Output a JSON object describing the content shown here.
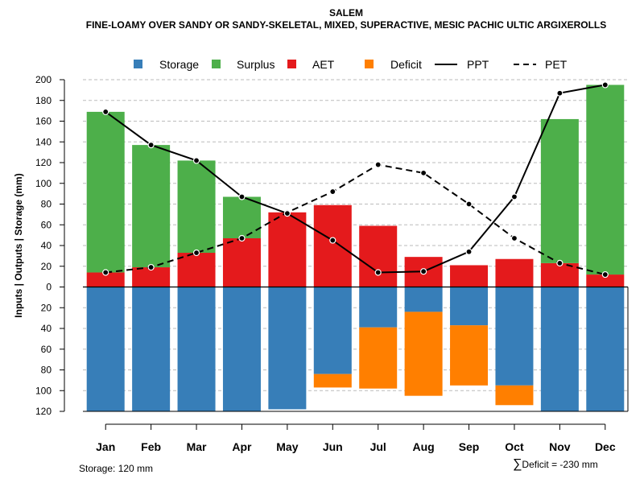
{
  "title": "SALEM",
  "subtitle": "FINE-LOAMY OVER SANDY OR SANDY-SKELETAL, MIXED, SUPERACTIVE, MESIC PACHIC ULTIC ARGIXEROLLS",
  "storage_note": "Storage: 120 mm",
  "deficit_note": "Deficit = -230 mm",
  "deficit_symbol": "∑",
  "colors": {
    "storage": "#377eb8",
    "surplus": "#4daf4a",
    "aet": "#e41a1c",
    "deficit": "#ff7f00",
    "line": "#000000",
    "grid": "#bbbbbb"
  },
  "chart_data": {
    "type": "bar",
    "title": "SALEM",
    "ylabel": "Inputs | Outputs | Storage    (mm)",
    "ylim": [
      -120,
      200
    ],
    "y_ticks": [
      200,
      180,
      160,
      140,
      120,
      100,
      80,
      60,
      40,
      20,
      0,
      -20,
      -40,
      -60,
      -80,
      -100,
      -120
    ],
    "y_tick_labels": [
      "200",
      "180",
      "160",
      "140",
      "120",
      "100",
      "80",
      "60",
      "40",
      "20",
      "0",
      "20",
      "40",
      "60",
      "80",
      "100",
      "120"
    ],
    "legend": [
      "Storage",
      "Surplus",
      "AET",
      "Deficit",
      "PPT",
      "PET"
    ],
    "legend_position": "top",
    "categories": [
      "Jan",
      "Feb",
      "Mar",
      "Apr",
      "May",
      "Jun",
      "Jul",
      "Aug",
      "Sep",
      "Oct",
      "Nov",
      "Dec"
    ],
    "series": [
      {
        "name": "AET",
        "values": [
          14,
          19,
          33,
          47,
          72,
          79,
          59,
          29,
          21,
          27,
          23,
          12
        ]
      },
      {
        "name": "Surplus",
        "values": [
          155,
          118,
          89,
          40,
          0,
          0,
          0,
          0,
          0,
          0,
          139,
          183
        ]
      },
      {
        "name": "Storage",
        "values": [
          120,
          120,
          120,
          120,
          118,
          84,
          39,
          24,
          37,
          95,
          120,
          120
        ]
      },
      {
        "name": "Deficit",
        "values": [
          0,
          0,
          0,
          0,
          0,
          13,
          59,
          81,
          58,
          19,
          0,
          0
        ]
      },
      {
        "name": "PPT",
        "values": [
          169,
          137,
          122,
          87,
          71,
          45,
          14,
          15,
          34,
          87,
          187,
          195
        ]
      },
      {
        "name": "PET",
        "values": [
          14,
          19,
          33,
          47,
          72,
          92,
          118,
          110,
          80,
          47,
          23,
          12
        ]
      }
    ]
  }
}
